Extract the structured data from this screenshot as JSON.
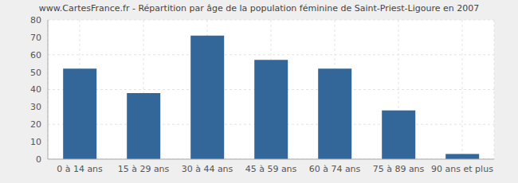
{
  "chart_data": {
    "type": "bar",
    "title": "www.CartesFrance.fr - Répartition par âge de la population féminine de Saint-Priest-Ligoure en 2007",
    "categories": [
      "0 à 14 ans",
      "15 à 29 ans",
      "30 à 44 ans",
      "45 à 59 ans",
      "60 à 74 ans",
      "75 à 89 ans",
      "90 ans et plus"
    ],
    "values": [
      52,
      38,
      71,
      57,
      52,
      28,
      3
    ],
    "color": "#336699",
    "ylim": [
      0,
      80
    ],
    "yticks": [
      0,
      10,
      20,
      30,
      40,
      50,
      60,
      70,
      80
    ],
    "grid": true
  }
}
